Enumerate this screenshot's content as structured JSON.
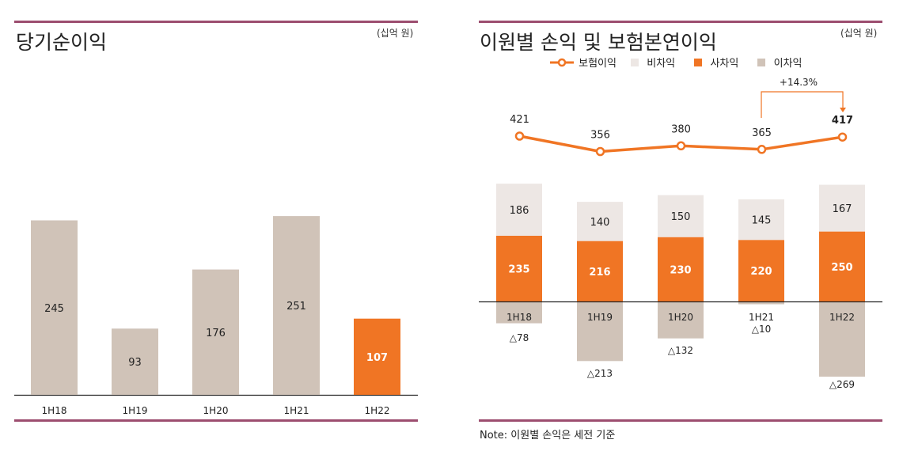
{
  "left_panel": {
    "title": "당기순이익",
    "unit": "(십억 원)"
  },
  "right_panel": {
    "title": "이원별 손익 및 보험본연이익",
    "unit": "(십억 원)",
    "note": "Note: 이원별 손익은 세전 기준",
    "growth_label": "+14.3%"
  },
  "colors": {
    "rule": "#9c4d6f",
    "grey_bar": "#d0c3b8",
    "orange": "#f07524",
    "light_bar": "#ede7e4",
    "line": "#f07524"
  },
  "chart_data": [
    {
      "type": "bar",
      "title": "당기순이익",
      "categories": [
        "1H18",
        "1H19",
        "1H20",
        "1H21",
        "1H22"
      ],
      "values": [
        245,
        93,
        176,
        251,
        107
      ],
      "highlight_index": 4,
      "ylim": [
        0,
        260
      ],
      "grid": false,
      "legend": "none"
    },
    {
      "type": "bar",
      "title": "이원별 손익 및 보험본연이익",
      "stacked": true,
      "legend": "top",
      "categories": [
        "1H18",
        "1H19",
        "1H20",
        "1H21",
        "1H22"
      ],
      "series": [
        {
          "name": "보험이익",
          "type": "line",
          "values": [
            421,
            356,
            380,
            365,
            417
          ],
          "labels": [
            "421",
            "356",
            "380",
            "365",
            "417"
          ]
        },
        {
          "name": "비차익",
          "values": [
            186,
            140,
            150,
            145,
            167
          ],
          "labels": [
            "186",
            "140",
            "150",
            "145",
            "167"
          ]
        },
        {
          "name": "사차익",
          "values": [
            235,
            216,
            230,
            220,
            250
          ],
          "labels": [
            "235",
            "216",
            "230",
            "220",
            "250"
          ]
        },
        {
          "name": "이차익",
          "values": [
            -78,
            -213,
            -132,
            -10,
            -269
          ],
          "labels": [
            "△78",
            "△213",
            "△132",
            "△10",
            "△269"
          ]
        }
      ],
      "annotation": "+14.3%",
      "grid": false
    }
  ]
}
